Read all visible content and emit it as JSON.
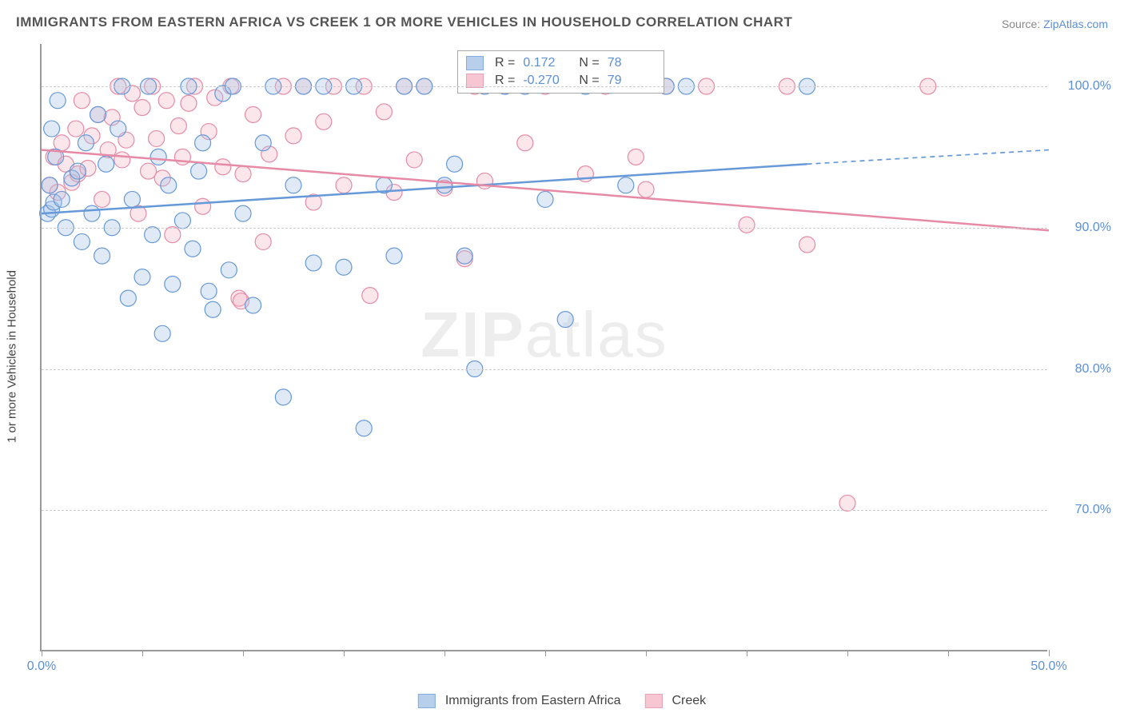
{
  "title": "IMMIGRANTS FROM EASTERN AFRICA VS CREEK 1 OR MORE VEHICLES IN HOUSEHOLD CORRELATION CHART",
  "source_prefix": "Source: ",
  "source_link": "ZipAtlas.com",
  "watermark_bold": "ZIP",
  "watermark_rest": "atlas",
  "chart": {
    "type": "scatter",
    "background_color": "#ffffff",
    "grid_color": "#cccccc",
    "axis_color": "#999999",
    "tick_label_color": "#5b8fd6",
    "label_color": "#444444",
    "ylabel": "1 or more Vehicles in Household",
    "xlim": [
      0,
      50
    ],
    "ylim": [
      60,
      103
    ],
    "xtick_positions": [
      0,
      5,
      10,
      15,
      20,
      25,
      30,
      35,
      40,
      45,
      50
    ],
    "xtick_labels": {
      "0": "0.0%",
      "50": "50.0%"
    },
    "yticks": [
      70,
      80,
      90,
      100
    ],
    "ytick_labels": [
      "70.0%",
      "80.0%",
      "90.0%",
      "100.0%"
    ],
    "marker_radius": 10,
    "marker_fill_opacity": 0.35,
    "marker_stroke_width": 1.2,
    "line_width": 2.5,
    "series": [
      {
        "name": "Immigrants from Eastern Africa",
        "color": "#6699d8",
        "fill": "#a7c4e8",
        "R": "0.172",
        "N": "78",
        "trend": {
          "x1": 0,
          "y1": 91,
          "x2": 38,
          "y2": 94.5,
          "x_dash_to": 50,
          "y_dash_to": 95.5
        },
        "points": [
          [
            0.3,
            91
          ],
          [
            0.5,
            91.3
          ],
          [
            0.6,
            91.8
          ],
          [
            0.4,
            93
          ],
          [
            0.7,
            95
          ],
          [
            0.5,
            97
          ],
          [
            0.8,
            99
          ],
          [
            1,
            92
          ],
          [
            1.2,
            90
          ],
          [
            1.5,
            93.5
          ],
          [
            1.8,
            94
          ],
          [
            2,
            89
          ],
          [
            2.2,
            96
          ],
          [
            2.5,
            91
          ],
          [
            2.8,
            98
          ],
          [
            3,
            88
          ],
          [
            3.2,
            94.5
          ],
          [
            3.5,
            90
          ],
          [
            3.8,
            97
          ],
          [
            4,
            100
          ],
          [
            4.3,
            85
          ],
          [
            4.5,
            92
          ],
          [
            5,
            86.5
          ],
          [
            5.3,
            100
          ],
          [
            5.5,
            89.5
          ],
          [
            5.8,
            95
          ],
          [
            6,
            82.5
          ],
          [
            6.3,
            93
          ],
          [
            6.5,
            86
          ],
          [
            7,
            90.5
          ],
          [
            7.3,
            100
          ],
          [
            7.5,
            88.5
          ],
          [
            7.8,
            94
          ],
          [
            8,
            96
          ],
          [
            8.3,
            85.5
          ],
          [
            8.5,
            84.2
          ],
          [
            9,
            99.5
          ],
          [
            9.3,
            87
          ],
          [
            9.5,
            100
          ],
          [
            10,
            91
          ],
          [
            10.5,
            84.5
          ],
          [
            11,
            96
          ],
          [
            11.5,
            100
          ],
          [
            12,
            78
          ],
          [
            12.5,
            93
          ],
          [
            13,
            100
          ],
          [
            13.5,
            87.5
          ],
          [
            14,
            100
          ],
          [
            15,
            87.2
          ],
          [
            15.5,
            100
          ],
          [
            16,
            75.8
          ],
          [
            17,
            93
          ],
          [
            17.5,
            88
          ],
          [
            18,
            100
          ],
          [
            19,
            100
          ],
          [
            20,
            93
          ],
          [
            20.5,
            94.5
          ],
          [
            21,
            88
          ],
          [
            21.5,
            80
          ],
          [
            22,
            100
          ],
          [
            23,
            100
          ],
          [
            24,
            100
          ],
          [
            25,
            92
          ],
          [
            26,
            83.5
          ],
          [
            27,
            100
          ],
          [
            29,
            93
          ],
          [
            31,
            100
          ],
          [
            32,
            100
          ],
          [
            38,
            100
          ]
        ]
      },
      {
        "name": "Creek",
        "color": "#e68aa5",
        "fill": "#f4b8c9",
        "R": "-0.270",
        "N": "79",
        "trend": {
          "x1": 0,
          "y1": 95.5,
          "x2": 50,
          "y2": 89.8
        },
        "points": [
          [
            0.4,
            93
          ],
          [
            0.6,
            95
          ],
          [
            0.8,
            92.5
          ],
          [
            1,
            96
          ],
          [
            1.2,
            94.5
          ],
          [
            1.5,
            93.2
          ],
          [
            1.7,
            97
          ],
          [
            1.8,
            93.8
          ],
          [
            2,
            99
          ],
          [
            2.3,
            94.2
          ],
          [
            2.5,
            96.5
          ],
          [
            2.8,
            98
          ],
          [
            3,
            92
          ],
          [
            3.3,
            95.5
          ],
          [
            3.5,
            97.8
          ],
          [
            3.8,
            100
          ],
          [
            4,
            94.8
          ],
          [
            4.2,
            96.2
          ],
          [
            4.5,
            99.5
          ],
          [
            4.8,
            91
          ],
          [
            5,
            98.5
          ],
          [
            5.3,
            94
          ],
          [
            5.5,
            100
          ],
          [
            5.7,
            96.3
          ],
          [
            6,
            93.5
          ],
          [
            6.2,
            99
          ],
          [
            6.5,
            89.5
          ],
          [
            6.8,
            97.2
          ],
          [
            7,
            95
          ],
          [
            7.3,
            98.8
          ],
          [
            7.6,
            100
          ],
          [
            8,
            91.5
          ],
          [
            8.3,
            96.8
          ],
          [
            8.6,
            99.2
          ],
          [
            9,
            94.3
          ],
          [
            9.4,
            100
          ],
          [
            9.8,
            85
          ],
          [
            9.9,
            84.8
          ],
          [
            10,
            93.8
          ],
          [
            10.5,
            98
          ],
          [
            11,
            89
          ],
          [
            11.3,
            95.2
          ],
          [
            12,
            100
          ],
          [
            12.5,
            96.5
          ],
          [
            13,
            100
          ],
          [
            13.5,
            91.8
          ],
          [
            14,
            97.5
          ],
          [
            14.5,
            100
          ],
          [
            15,
            93
          ],
          [
            16,
            100
          ],
          [
            16.3,
            85.2
          ],
          [
            17,
            98.2
          ],
          [
            17.5,
            92.5
          ],
          [
            18,
            100
          ],
          [
            18.5,
            94.8
          ],
          [
            19,
            100
          ],
          [
            20,
            92.8
          ],
          [
            21,
            87.8
          ],
          [
            21.5,
            100
          ],
          [
            22,
            93.3
          ],
          [
            23,
            100
          ],
          [
            24,
            96
          ],
          [
            25,
            100
          ],
          [
            27,
            93.8
          ],
          [
            28,
            100
          ],
          [
            29.5,
            95
          ],
          [
            30,
            92.7
          ],
          [
            31,
            100
          ],
          [
            33,
            100
          ],
          [
            35,
            90.2
          ],
          [
            37,
            100
          ],
          [
            38,
            88.8
          ],
          [
            40,
            70.5
          ],
          [
            44,
            100
          ]
        ]
      }
    ]
  },
  "legend": {
    "R_label": "R =",
    "N_label": "N ="
  }
}
